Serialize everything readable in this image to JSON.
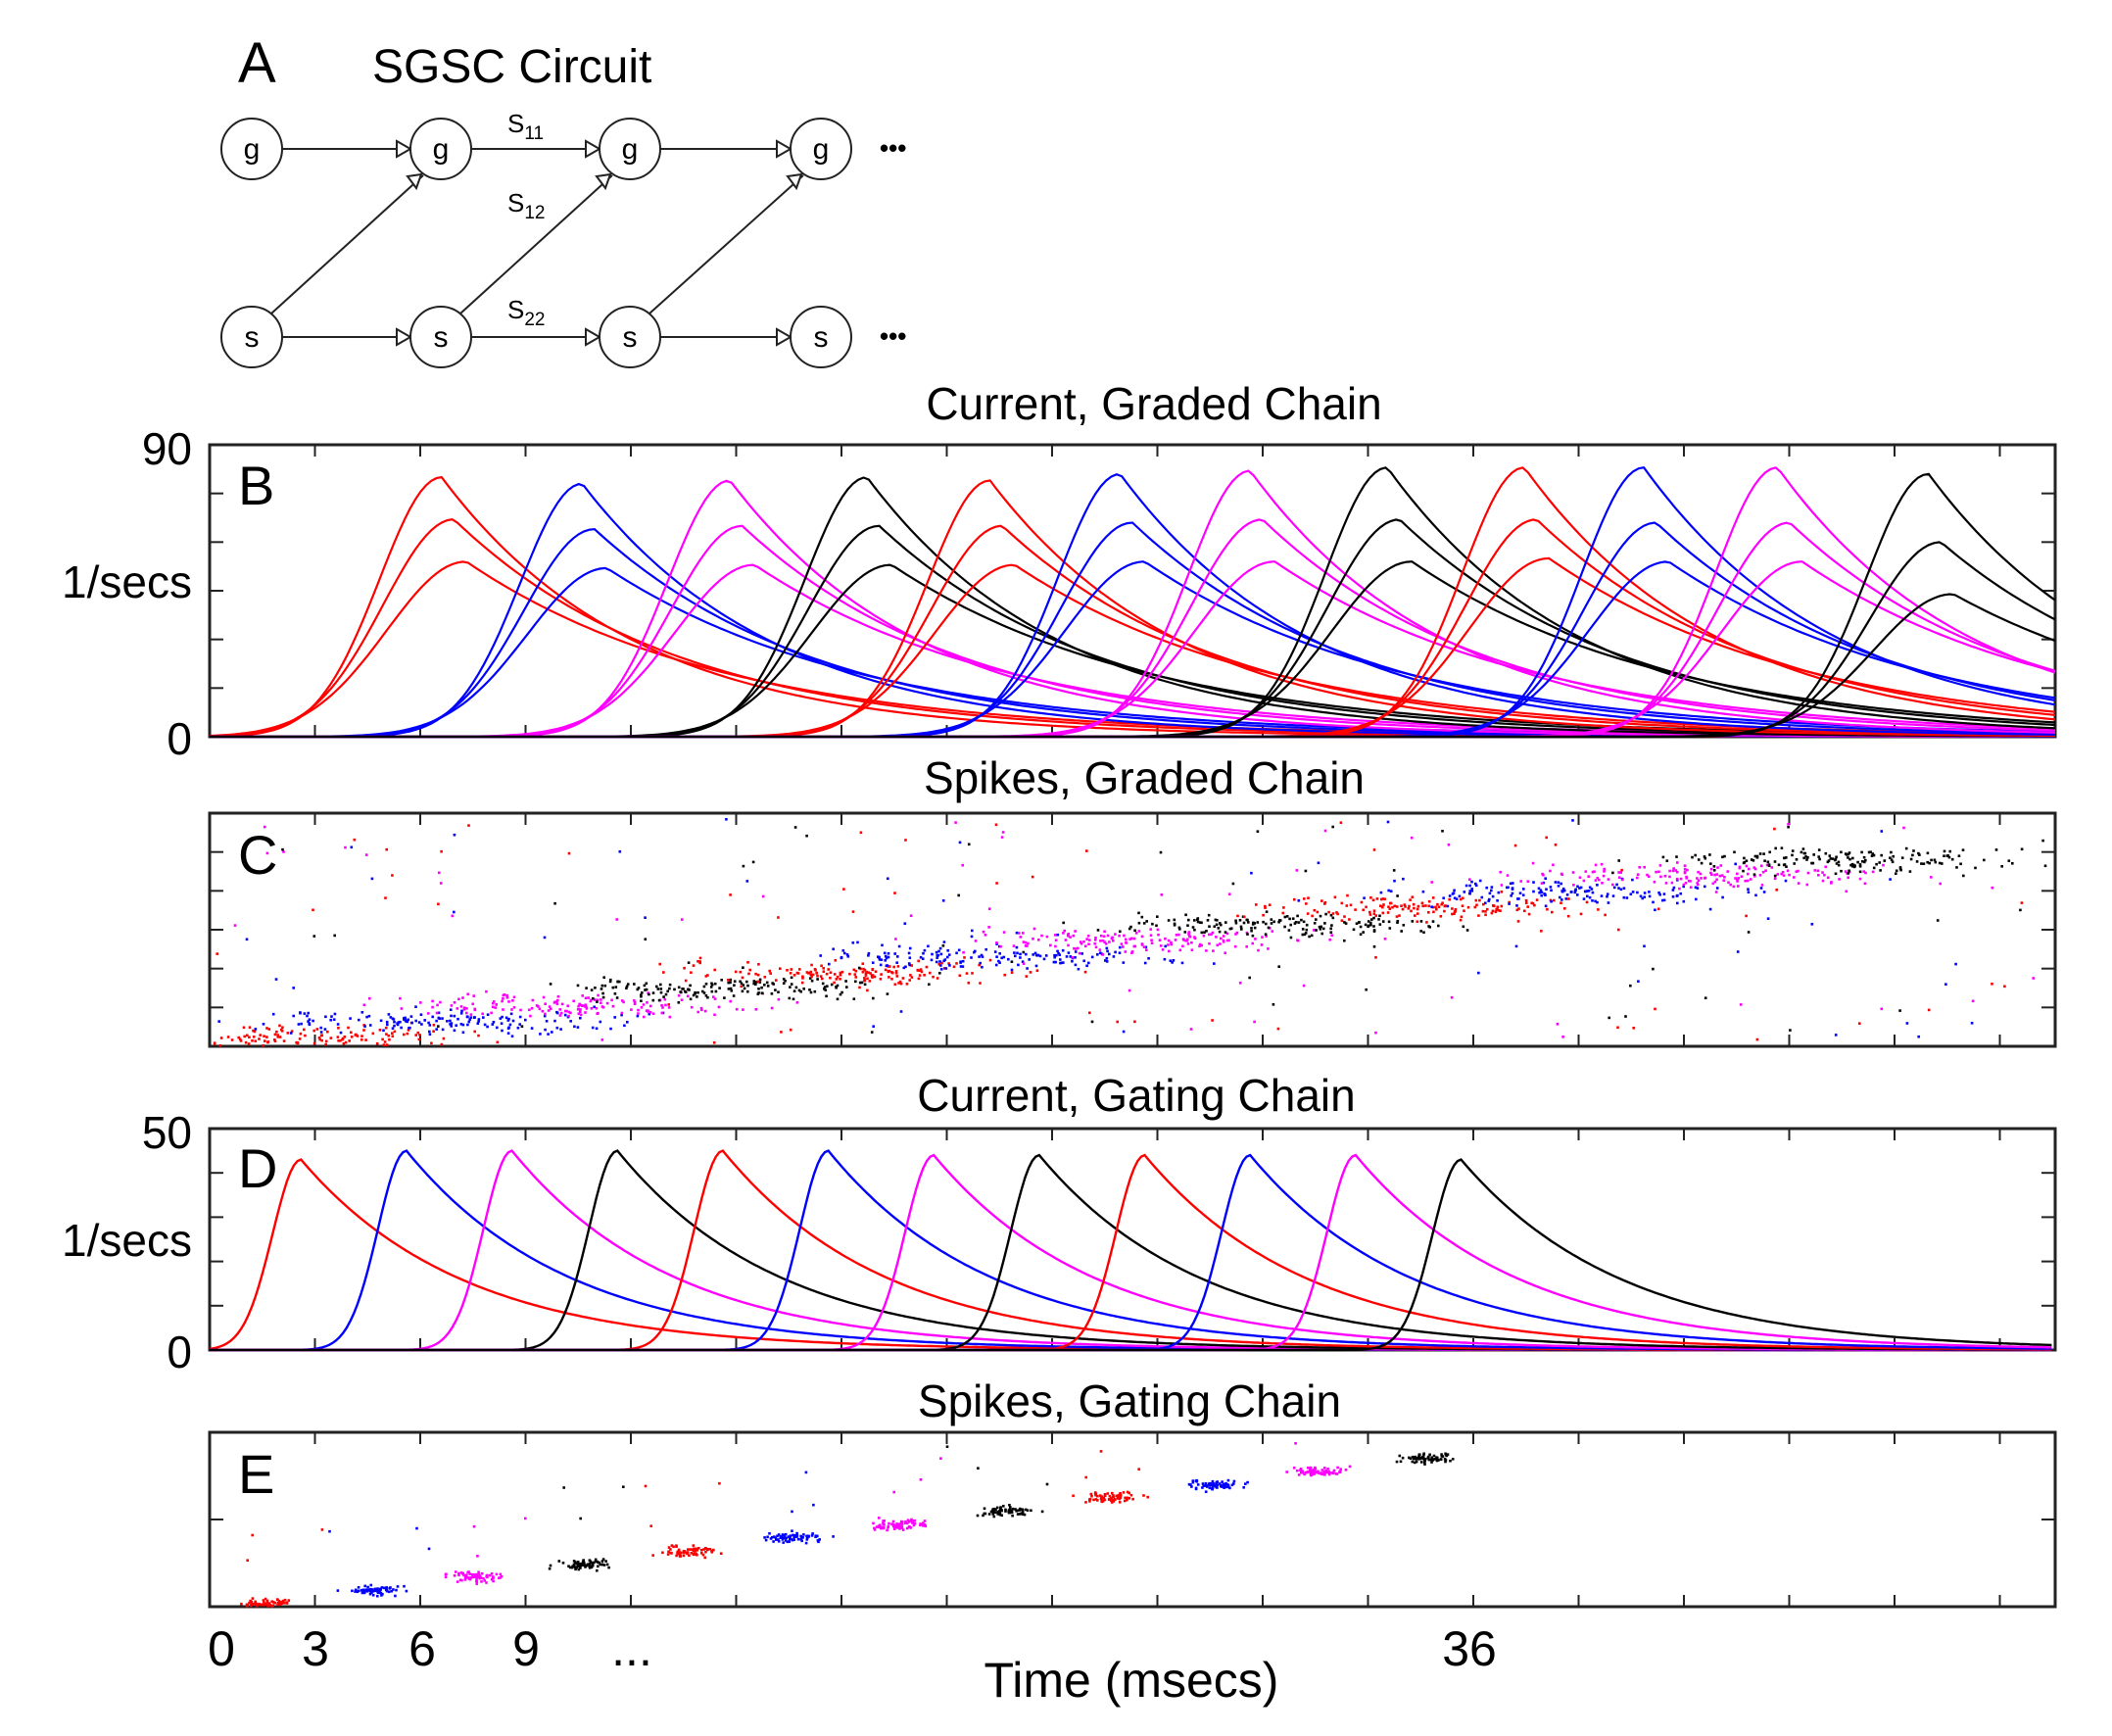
{
  "colors": {
    "red": "#ff0000",
    "blue": "#0000ff",
    "magenta": "#ff00ff",
    "black": "#000000",
    "frame": "#222222"
  },
  "series_color_cycle": [
    "red",
    "blue",
    "magenta",
    "black"
  ],
  "panels": {
    "A": {
      "letter": "A",
      "title": "SGSC Circuit",
      "node_g": "g",
      "node_s": "s",
      "ellipsis": "•••",
      "labels": {
        "s11": "S",
        "s11_sub": "11",
        "s12": "S",
        "s12_sub": "12",
        "s22": "S",
        "s22_sub": "22"
      }
    },
    "B": {
      "letter": "B",
      "title": "Current, Graded Chain",
      "ylabel": "1/secs",
      "y_tick_labels": [
        "90",
        "0"
      ]
    },
    "C": {
      "letter": "C",
      "title": "Spikes, Graded Chain"
    },
    "D": {
      "letter": "D",
      "title": "Current, Gating Chain",
      "ylabel": "1/secs",
      "y_tick_labels": [
        "50",
        "0"
      ]
    },
    "E": {
      "letter": "E",
      "title": "Spikes, Gating Chain",
      "x_tick_labels": [
        "0",
        "3",
        "6",
        "9",
        "...",
        "36"
      ],
      "xlabel": "Time (msecs)"
    }
  },
  "chart_data": [
    {
      "panel": "B",
      "type": "line",
      "title": "Current, Graded Chain",
      "xlabel": "Time (msecs)",
      "ylabel": "1/secs",
      "xlim": [
        0,
        52.5
      ],
      "ylim": [
        0,
        90
      ],
      "series_note": "12 stages, colors cycle red/blue/magenta/black, 3 curves per stage",
      "peak_times": [
        6.6,
        10.6,
        14.8,
        18.7,
        22.2,
        25.9,
        29.6,
        33.5,
        37.4,
        40.8,
        44.6,
        48.9
      ],
      "peak_heights": [
        [
          80,
          67,
          54
        ],
        [
          78,
          64,
          52
        ],
        [
          79,
          65,
          53
        ],
        [
          80,
          65,
          53
        ],
        [
          79,
          65,
          53
        ],
        [
          81,
          66,
          54
        ],
        [
          82,
          67,
          54
        ],
        [
          83,
          67,
          54
        ],
        [
          83,
          67,
          55
        ],
        [
          83,
          66,
          54
        ],
        [
          83,
          66,
          54
        ],
        [
          81,
          60,
          44
        ]
      ]
    },
    {
      "panel": "C",
      "type": "scatter",
      "title": "Spikes, Graded Chain",
      "xlim": [
        0,
        52.5
      ],
      "note": "raster of spikes; neuron populations advance diagonally, colors cycle by stage"
    },
    {
      "panel": "D",
      "type": "line",
      "title": "Current, Gating Chain",
      "xlabel": "Time (msecs)",
      "ylabel": "1/secs",
      "xlim": [
        0,
        52.5
      ],
      "ylim": [
        0,
        50
      ],
      "peak_times": [
        2.6,
        5.6,
        8.6,
        11.6,
        14.6,
        17.6,
        20.6,
        23.6,
        26.6,
        29.6,
        32.6,
        35.6
      ],
      "peak_heights": [
        43,
        45,
        45,
        45,
        45,
        45,
        44,
        44,
        44,
        44,
        44,
        43
      ]
    },
    {
      "panel": "E",
      "type": "scatter",
      "title": "Spikes, Gating Chain",
      "xlabel": "Time (msecs)",
      "xlim": [
        0,
        52.5
      ],
      "x_ticks": [
        0,
        3,
        6,
        9,
        36
      ],
      "note": "tight spike packets, one per 3 ms stage, colors cycle by stage"
    }
  ]
}
